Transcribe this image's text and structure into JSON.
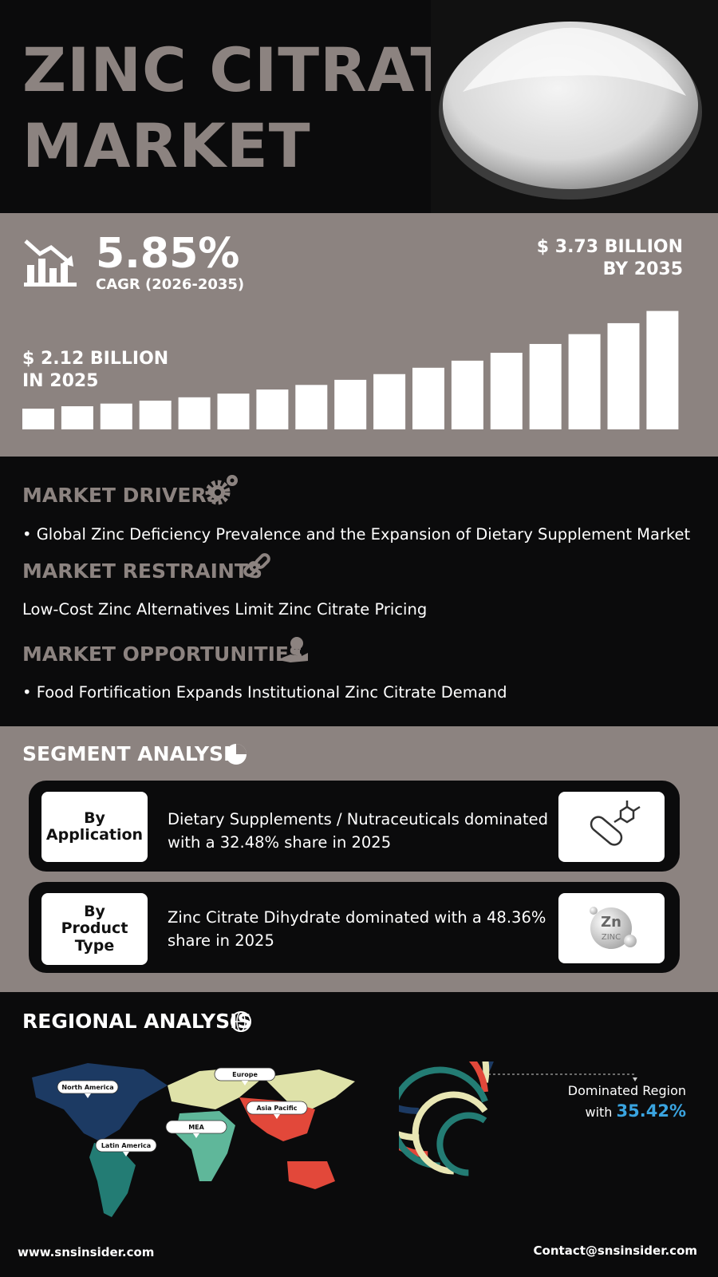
{
  "header": {
    "title_lines": [
      "ZINC CITRATE",
      "MARKET"
    ]
  },
  "growth": {
    "cagr": "5.85%",
    "cagr_label": "CAGR (2026-2035)",
    "end_value": "$ 3.73 BILLION",
    "end_year": "BY 2035",
    "start_value": "$ 2.12 BILLION",
    "start_year": "IN 2025"
  },
  "dynamics": [
    {
      "heading": "MARKET DRIVERS",
      "text": "• Global Zinc Deficiency Prevalence and the Expansion of Dietary Supplement Market"
    },
    {
      "heading": "MARKET RESTRAINTS",
      "text": "Low-Cost Zinc Alternatives Limit Zinc Citrate Pricing"
    },
    {
      "heading": "MARKET OPPORTUNITIES",
      "text": "• Food Fortification Expands Institutional Zinc Citrate Demand"
    }
  ],
  "segment": {
    "heading": "SEGMENT ANALYSIS",
    "items": [
      {
        "label_lines": [
          "By",
          "Application"
        ],
        "text_lines": [
          "Dietary Supplements / Nutraceuticals dominated",
          "with a 32.48% share in 2025"
        ]
      },
      {
        "label_lines": [
          "By",
          "Product",
          "Type"
        ],
        "text_lines": [
          "Zinc Citrate Dihydrate dominated with a 48.36%",
          "share in 2025"
        ],
        "icon_texts": [
          "Zn",
          "ZINC"
        ]
      }
    ]
  },
  "regional": {
    "heading": "REGIONAL ANALYSIS",
    "regions": [
      "North America",
      "Europe",
      "Asia Pacific",
      "MEA",
      "Latin America"
    ],
    "dominated_label": "Dominated Region",
    "with_label": "with",
    "share": "35.42%"
  },
  "footer": {
    "website": "www.snsinsider.com",
    "contact": "Contact@snsinsider.com"
  }
}
